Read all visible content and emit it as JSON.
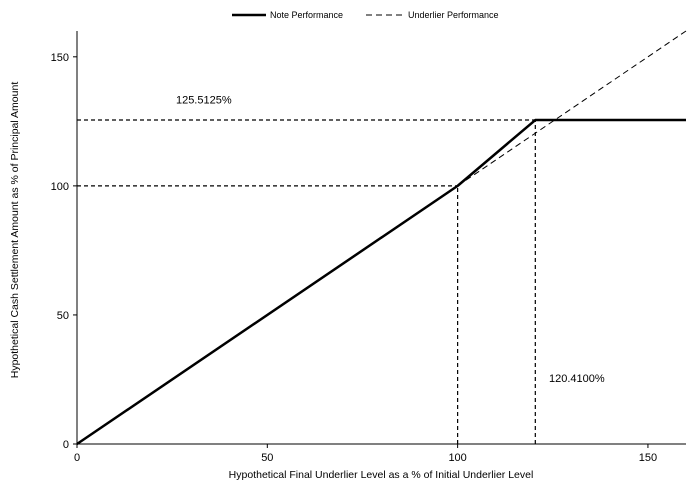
{
  "chart_data": {
    "type": "line",
    "title": "",
    "xlabel": "Hypothetical Final Underlier Level as a % of Initial Underlier Level",
    "ylabel": "Hypothetical Cash Settlement Amount as % of Principal Amount",
    "xlim": [
      0,
      160
    ],
    "ylim": [
      0,
      160
    ],
    "xticks": [
      0,
      50,
      100,
      150
    ],
    "yticks": [
      0,
      50,
      100,
      150
    ],
    "x_tick_labels": [
      "0",
      "50",
      "100",
      "150"
    ],
    "y_tick_labels": [
      "0",
      "50",
      "100",
      "150"
    ],
    "grid": false,
    "legend_position": "top-center",
    "series": [
      {
        "name": "Note Performance",
        "style": "solid-thick",
        "color": "#000000",
        "points": [
          [
            0,
            0
          ],
          [
            100,
            100
          ],
          [
            120.41,
            125.5125
          ],
          [
            160,
            125.5125
          ]
        ]
      },
      {
        "name": "Underlier Performance",
        "style": "dashed",
        "color": "#000000",
        "points": [
          [
            100,
            100
          ],
          [
            160,
            160
          ]
        ]
      }
    ],
    "reference_lines": [
      {
        "from": [
          0,
          125.5125
        ],
        "to": [
          120.41,
          125.5125
        ]
      },
      {
        "from": [
          0,
          100
        ],
        "to": [
          100,
          100
        ]
      },
      {
        "from": [
          100,
          0
        ],
        "to": [
          100,
          100
        ]
      },
      {
        "from": [
          120.41,
          0
        ],
        "to": [
          120.41,
          125.5125
        ]
      }
    ],
    "annotations": [
      {
        "text": "125.5125%",
        "x": 26,
        "y": 132
      },
      {
        "text": "120.4100%",
        "x": 124,
        "y": 24
      }
    ]
  }
}
